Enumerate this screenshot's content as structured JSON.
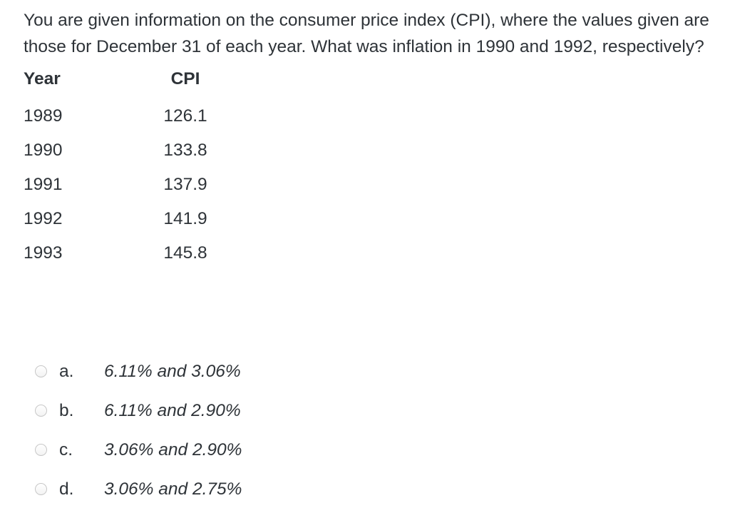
{
  "question": {
    "lines": [
      "You are given information on the consumer price index (CPI), where the values given are",
      "those for December 31 of each year. What was inflation in 1990 and 1992, respectively?"
    ]
  },
  "table": {
    "headers": {
      "year": "Year",
      "cpi": "CPI"
    },
    "rows": [
      {
        "year": "1989",
        "cpi": "126.1"
      },
      {
        "year": "1990",
        "cpi": "133.8"
      },
      {
        "year": "1991",
        "cpi": "137.9"
      },
      {
        "year": "1992",
        "cpi": "141.9"
      },
      {
        "year": "1993",
        "cpi": "145.8"
      }
    ]
  },
  "options": [
    {
      "letter": "a.",
      "text": "6.11% and 3.06%",
      "selected": false
    },
    {
      "letter": "b.",
      "text": "6.11% and 2.90%",
      "selected": false
    },
    {
      "letter": "c.",
      "text": "3.06% and 2.90%",
      "selected": false
    },
    {
      "letter": "d.",
      "text": "3.06% and 2.75%",
      "selected": false
    }
  ],
  "colors": {
    "background": "#ffffff",
    "text": "#2e3338",
    "radio_border": "#c7c7c7"
  }
}
